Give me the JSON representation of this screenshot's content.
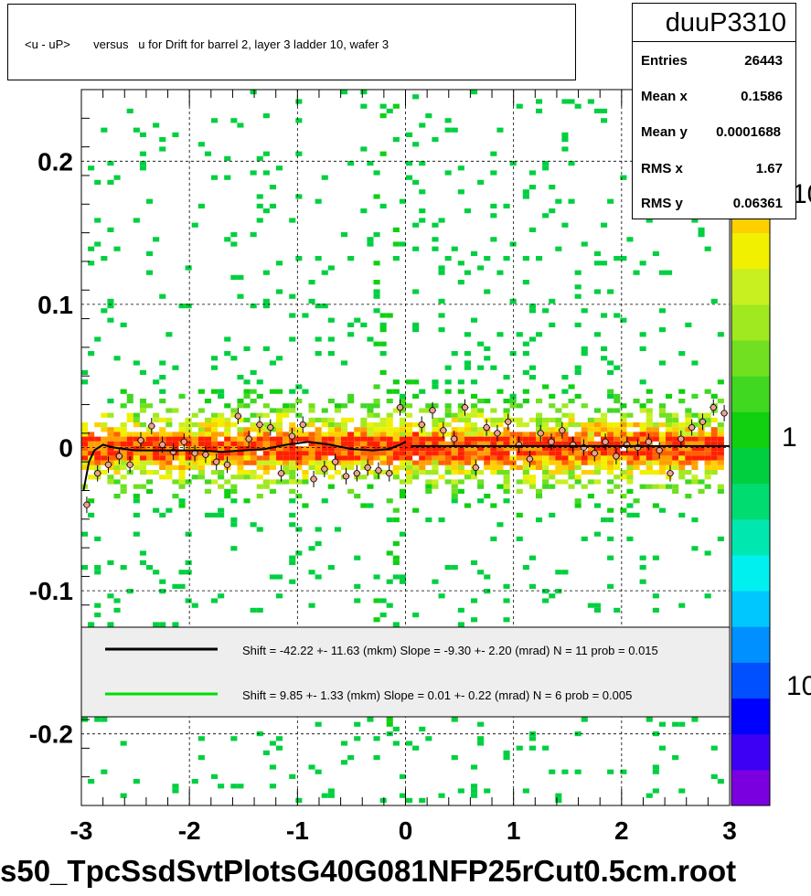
{
  "title": "<u - uP>       versus   u for Drift for barrel 2, layer 3 ladder 10, wafer 3",
  "stats": {
    "name": "duuP3310",
    "rows": [
      {
        "label": "Entries",
        "value": "26443"
      },
      {
        "label": "Mean x",
        "value": "0.1586"
      },
      {
        "label": "Mean y",
        "value": "0.0001688"
      },
      {
        "label": "RMS x",
        "value": "1.67"
      },
      {
        "label": "RMS y",
        "value": "0.06361"
      }
    ]
  },
  "footer": "s50_TpcSsdSvtPlotsG40G081NFP25rCut0.5cm.root",
  "legend": [
    {
      "text": "Shift =   -42.22 +- 11.63 (mkm) Slope =    -9.30 +- 2.20 (mrad)  N = 11 prob = 0.015",
      "color": "#000000"
    },
    {
      "text": "Shift =     9.85 +- 1.33 (mkm) Slope =     0.01 +- 0.22 (mrad)  N = 6 prob = 0.005",
      "color": "#00dd00"
    }
  ],
  "colorbar_labels": [
    "10",
    "1",
    "10"
  ],
  "chart_data": {
    "type": "heatmap",
    "xlim": [
      -3,
      3
    ],
    "ylim": [
      -0.25,
      0.25
    ],
    "x_ticks": [
      "-3",
      "-2",
      "-1",
      "0",
      "1",
      "2",
      "3"
    ],
    "y_ticks": [
      "-0.2",
      "-0.1",
      "0",
      "0.1",
      "0.2"
    ],
    "grid": true,
    "z_scale": "log",
    "profile_points": [
      {
        "x": -2.95,
        "y": -0.04
      },
      {
        "x": -2.85,
        "y": -0.018
      },
      {
        "x": -2.75,
        "y": -0.012
      },
      {
        "x": -2.65,
        "y": -0.006
      },
      {
        "x": -2.55,
        "y": -0.012
      },
      {
        "x": -2.45,
        "y": 0.005
      },
      {
        "x": -2.35,
        "y": 0.015
      },
      {
        "x": -2.25,
        "y": 0.002
      },
      {
        "x": -2.15,
        "y": -0.003
      },
      {
        "x": -2.05,
        "y": 0.004
      },
      {
        "x": -1.95,
        "y": -0.004
      },
      {
        "x": -1.85,
        "y": -0.005
      },
      {
        "x": -1.75,
        "y": -0.01
      },
      {
        "x": -1.65,
        "y": -0.012
      },
      {
        "x": -1.55,
        "y": 0.022
      },
      {
        "x": -1.45,
        "y": 0.006
      },
      {
        "x": -1.35,
        "y": 0.016
      },
      {
        "x": -1.25,
        "y": 0.014
      },
      {
        "x": -1.15,
        "y": -0.018
      },
      {
        "x": -1.05,
        "y": 0.008
      },
      {
        "x": -0.95,
        "y": 0.016
      },
      {
        "x": -0.85,
        "y": -0.022
      },
      {
        "x": -0.75,
        "y": -0.015
      },
      {
        "x": -0.65,
        "y": -0.01
      },
      {
        "x": -0.55,
        "y": -0.02
      },
      {
        "x": -0.45,
        "y": -0.018
      },
      {
        "x": -0.35,
        "y": -0.014
      },
      {
        "x": -0.25,
        "y": -0.016
      },
      {
        "x": -0.15,
        "y": -0.018
      },
      {
        "x": -0.05,
        "y": 0.028
      },
      {
        "x": 0.15,
        "y": 0.016
      },
      {
        "x": 0.25,
        "y": 0.026
      },
      {
        "x": 0.35,
        "y": 0.012
      },
      {
        "x": 0.45,
        "y": 0.006
      },
      {
        "x": 0.55,
        "y": 0.028
      },
      {
        "x": 0.65,
        "y": -0.014
      },
      {
        "x": 0.75,
        "y": 0.014
      },
      {
        "x": 0.85,
        "y": 0.01
      },
      {
        "x": 0.95,
        "y": 0.018
      },
      {
        "x": 1.05,
        "y": 0.002
      },
      {
        "x": 1.15,
        "y": -0.008
      },
      {
        "x": 1.25,
        "y": 0.01
      },
      {
        "x": 1.35,
        "y": 0.004
      },
      {
        "x": 1.45,
        "y": 0.012
      },
      {
        "x": 1.55,
        "y": 0.002
      },
      {
        "x": 1.65,
        "y": 0.0
      },
      {
        "x": 1.75,
        "y": -0.004
      },
      {
        "x": 1.85,
        "y": 0.004
      },
      {
        "x": 1.95,
        "y": -0.006
      },
      {
        "x": 2.05,
        "y": 0.002
      },
      {
        "x": 2.15,
        "y": 0.0
      },
      {
        "x": 2.25,
        "y": 0.004
      },
      {
        "x": 2.35,
        "y": -0.002
      },
      {
        "x": 2.45,
        "y": -0.018
      },
      {
        "x": 2.55,
        "y": 0.006
      },
      {
        "x": 2.65,
        "y": 0.014
      },
      {
        "x": 2.75,
        "y": 0.018
      },
      {
        "x": 2.85,
        "y": 0.028
      },
      {
        "x": 2.95,
        "y": 0.024
      }
    ],
    "fit_curves": [
      {
        "color": "#000000",
        "x_range": [
          -3,
          0
        ],
        "points": [
          [
            -2.98,
            -0.03
          ],
          [
            -2.93,
            -0.01
          ],
          [
            -2.88,
            -0.002
          ],
          [
            -2.8,
            0.002
          ],
          [
            -2.7,
            0.0
          ],
          [
            -2.5,
            -0.002
          ],
          [
            -2.2,
            -0.002
          ],
          [
            -1.9,
            -0.002
          ],
          [
            -1.7,
            -0.003
          ],
          [
            -1.5,
            -0.002
          ],
          [
            -1.3,
            -0.001
          ],
          [
            -1.1,
            0.002
          ],
          [
            -0.9,
            0.004
          ],
          [
            -0.7,
            0.002
          ],
          [
            -0.5,
            -0.001
          ],
          [
            -0.3,
            -0.002
          ],
          [
            -0.15,
            -0.001
          ],
          [
            -0.05,
            0.002
          ],
          [
            0.0,
            0.004
          ]
        ]
      },
      {
        "color": "#000000",
        "x_range": [
          0,
          3
        ],
        "points": [
          [
            0.05,
            0.001
          ],
          [
            1.0,
            0.001
          ],
          [
            2.0,
            0.001
          ],
          [
            3.0,
            0.001
          ]
        ]
      }
    ]
  }
}
